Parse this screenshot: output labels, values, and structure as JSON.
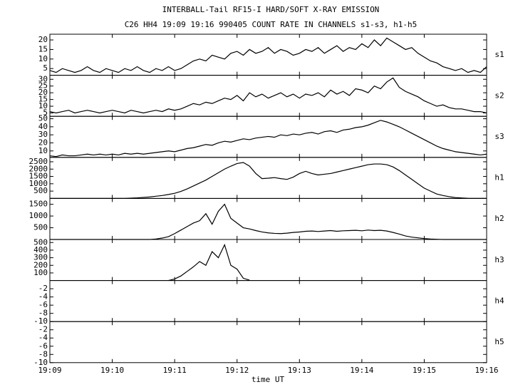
{
  "header": {
    "title": "INTERBALL-Tail RF15-I HARD/SOFT X-RAY EMISSION",
    "subtitle": "C26 HH4 19:09 19:16 990405  COUNT RATE IN CHANNELS s1-s3, h1-h5"
  },
  "xaxis": {
    "label": "time UT",
    "xlim": [
      1149,
      1156
    ],
    "xticks": [
      {
        "value": 1149,
        "label": "19:09"
      },
      {
        "value": 1150,
        "label": "19:10"
      },
      {
        "value": 1151,
        "label": "19:11"
      },
      {
        "value": 1152,
        "label": "19:12"
      },
      {
        "value": 1153,
        "label": "19:13"
      },
      {
        "value": 1154,
        "label": "19:14"
      },
      {
        "value": 1155,
        "label": "19:15"
      },
      {
        "value": 1156,
        "label": "19:16"
      }
    ]
  },
  "chart_data": [
    {
      "type": "line",
      "label": "s1",
      "color": "#000000",
      "ylim": [
        1.5,
        23
      ],
      "yticks": [
        5,
        10,
        15,
        20
      ],
      "x": [
        1149.0,
        1149.1,
        1149.2,
        1149.3,
        1149.4,
        1149.5,
        1149.6,
        1149.7,
        1149.8,
        1149.9,
        1150.0,
        1150.1,
        1150.2,
        1150.3,
        1150.4,
        1150.5,
        1150.6,
        1150.7,
        1150.8,
        1150.9,
        1151.0,
        1151.1,
        1151.2,
        1151.3,
        1151.4,
        1151.5,
        1151.6,
        1151.7,
        1151.8,
        1151.9,
        1152.0,
        1152.1,
        1152.2,
        1152.3,
        1152.4,
        1152.5,
        1152.6,
        1152.7,
        1152.8,
        1152.9,
        1153.0,
        1153.1,
        1153.2,
        1153.3,
        1153.4,
        1153.5,
        1153.6,
        1153.7,
        1153.8,
        1153.9,
        1154.0,
        1154.1,
        1154.2,
        1154.3,
        1154.4,
        1154.5,
        1154.6,
        1154.7,
        1154.8,
        1154.9,
        1155.0,
        1155.1,
        1155.2,
        1155.3,
        1155.4,
        1155.5,
        1155.6,
        1155.7,
        1155.8,
        1155.9,
        1156.0
      ],
      "values": [
        4,
        3,
        5,
        4,
        3,
        4,
        6,
        4,
        3,
        5,
        4,
        3,
        5,
        4,
        6,
        4,
        3,
        5,
        4,
        6,
        4,
        5,
        7,
        9,
        10,
        9,
        12,
        11,
        10,
        13,
        14,
        12,
        15,
        13,
        14,
        16,
        13,
        15,
        14,
        12,
        13,
        15,
        14,
        16,
        13,
        15,
        17,
        14,
        16,
        15,
        18,
        16,
        20,
        17,
        21,
        19,
        17,
        15,
        16,
        13,
        11,
        9,
        8,
        6,
        5,
        4,
        5,
        3,
        4,
        3,
        6
      ]
    },
    {
      "type": "line",
      "label": "s2",
      "color": "#000000",
      "ylim": [
        2.5,
        33
      ],
      "yticks": [
        5,
        10,
        15,
        20,
        25,
        30
      ],
      "x": [
        1149.0,
        1149.1,
        1149.2,
        1149.3,
        1149.4,
        1149.5,
        1149.6,
        1149.7,
        1149.8,
        1149.9,
        1150.0,
        1150.1,
        1150.2,
        1150.3,
        1150.4,
        1150.5,
        1150.6,
        1150.7,
        1150.8,
        1150.9,
        1151.0,
        1151.1,
        1151.2,
        1151.3,
        1151.4,
        1151.5,
        1151.6,
        1151.7,
        1151.8,
        1151.9,
        1152.0,
        1152.1,
        1152.2,
        1152.3,
        1152.4,
        1152.5,
        1152.6,
        1152.7,
        1152.8,
        1152.9,
        1153.0,
        1153.1,
        1153.2,
        1153.3,
        1153.4,
        1153.5,
        1153.6,
        1153.7,
        1153.8,
        1153.9,
        1154.0,
        1154.1,
        1154.2,
        1154.3,
        1154.4,
        1154.5,
        1154.6,
        1154.7,
        1154.8,
        1154.9,
        1155.0,
        1155.1,
        1155.2,
        1155.3,
        1155.4,
        1155.5,
        1155.6,
        1155.7,
        1155.8,
        1155.9,
        1156.0
      ],
      "values": [
        6,
        5,
        6,
        7,
        5,
        6,
        7,
        6,
        5,
        6,
        7,
        6,
        5,
        7,
        6,
        5,
        6,
        7,
        6,
        8,
        7,
        8,
        10,
        12,
        11,
        13,
        12,
        14,
        16,
        15,
        18,
        14,
        20,
        17,
        19,
        16,
        18,
        20,
        17,
        19,
        16,
        19,
        18,
        20,
        17,
        22,
        19,
        21,
        18,
        23,
        22,
        20,
        25,
        23,
        28,
        31,
        24,
        21,
        19,
        17,
        14,
        12,
        10,
        11,
        9,
        8,
        8,
        7,
        6,
        6,
        5
      ]
    },
    {
      "type": "line",
      "label": "s3",
      "color": "#000000",
      "ylim": [
        2,
        53
      ],
      "yticks": [
        10,
        20,
        30,
        40,
        50
      ],
      "x": [
        1149.0,
        1149.1,
        1149.2,
        1149.3,
        1149.4,
        1149.5,
        1149.6,
        1149.7,
        1149.8,
        1149.9,
        1150.0,
        1150.1,
        1150.2,
        1150.3,
        1150.4,
        1150.5,
        1150.6,
        1150.7,
        1150.8,
        1150.9,
        1151.0,
        1151.1,
        1151.2,
        1151.3,
        1151.4,
        1151.5,
        1151.6,
        1151.7,
        1151.8,
        1151.9,
        1152.0,
        1152.1,
        1152.2,
        1152.3,
        1152.4,
        1152.5,
        1152.6,
        1152.7,
        1152.8,
        1152.9,
        1153.0,
        1153.1,
        1153.2,
        1153.3,
        1153.4,
        1153.5,
        1153.6,
        1153.7,
        1153.8,
        1153.9,
        1154.0,
        1154.1,
        1154.2,
        1154.3,
        1154.4,
        1154.5,
        1154.6,
        1154.7,
        1154.8,
        1154.9,
        1155.0,
        1155.1,
        1155.2,
        1155.3,
        1155.4,
        1155.5,
        1155.6,
        1155.7,
        1155.8,
        1155.9,
        1156.0
      ],
      "values": [
        4,
        3,
        5,
        4,
        4,
        5,
        6,
        5,
        6,
        5,
        6,
        5,
        7,
        6,
        7,
        6,
        7,
        8,
        9,
        10,
        9,
        11,
        13,
        14,
        16,
        18,
        17,
        20,
        22,
        21,
        23,
        25,
        24,
        26,
        27,
        28,
        27,
        30,
        29,
        31,
        30,
        32,
        33,
        31,
        34,
        35,
        33,
        36,
        37,
        39,
        40,
        42,
        45,
        48,
        46,
        43,
        40,
        36,
        32,
        28,
        24,
        20,
        16,
        13,
        11,
        9,
        8,
        7,
        6,
        5,
        6
      ]
    },
    {
      "type": "line",
      "label": "h1",
      "color": "#000000",
      "ylim": [
        0,
        2800
      ],
      "yticks": [
        500,
        1000,
        1500,
        2000,
        2500
      ],
      "x": [
        1149.0,
        1149.1,
        1149.2,
        1149.3,
        1149.4,
        1149.5,
        1149.6,
        1149.7,
        1149.8,
        1149.9,
        1150.0,
        1150.1,
        1150.2,
        1150.3,
        1150.4,
        1150.5,
        1150.6,
        1150.7,
        1150.8,
        1150.9,
        1151.0,
        1151.1,
        1151.2,
        1151.3,
        1151.4,
        1151.5,
        1151.6,
        1151.7,
        1151.8,
        1151.9,
        1152.0,
        1152.1,
        1152.2,
        1152.3,
        1152.4,
        1152.5,
        1152.6,
        1152.7,
        1152.8,
        1152.9,
        1153.0,
        1153.1,
        1153.2,
        1153.3,
        1153.4,
        1153.5,
        1153.6,
        1153.7,
        1153.8,
        1153.9,
        1154.0,
        1154.1,
        1154.2,
        1154.3,
        1154.4,
        1154.5,
        1154.6,
        1154.7,
        1154.8,
        1154.9,
        1155.0,
        1155.1,
        1155.2,
        1155.3,
        1155.4,
        1155.5,
        1155.6,
        1155.7,
        1155.8,
        1155.9,
        1156.0
      ],
      "values": [
        0,
        0,
        0,
        0,
        0,
        0,
        0,
        0,
        0,
        0,
        0,
        0,
        0,
        20,
        40,
        70,
        100,
        150,
        200,
        270,
        350,
        480,
        650,
        850,
        1050,
        1250,
        1500,
        1750,
        2000,
        2200,
        2380,
        2450,
        2200,
        1700,
        1350,
        1380,
        1420,
        1350,
        1300,
        1450,
        1700,
        1850,
        1700,
        1600,
        1650,
        1700,
        1800,
        1900,
        2000,
        2100,
        2200,
        2300,
        2350,
        2350,
        2300,
        2150,
        1900,
        1600,
        1300,
        1000,
        700,
        500,
        300,
        200,
        120,
        60,
        30,
        10,
        0,
        0,
        0
      ]
    },
    {
      "type": "line",
      "label": "h2",
      "color": "#000000",
      "ylim": [
        0,
        1750
      ],
      "yticks": [
        500,
        1000,
        1500
      ],
      "x": [
        1149.0,
        1149.1,
        1149.2,
        1149.3,
        1149.4,
        1149.5,
        1149.6,
        1149.7,
        1149.8,
        1149.9,
        1150.0,
        1150.1,
        1150.2,
        1150.3,
        1150.4,
        1150.5,
        1150.6,
        1150.7,
        1150.8,
        1150.9,
        1151.0,
        1151.1,
        1151.2,
        1151.3,
        1151.4,
        1151.5,
        1151.6,
        1151.7,
        1151.8,
        1151.9,
        1152.0,
        1152.1,
        1152.2,
        1152.3,
        1152.4,
        1152.5,
        1152.6,
        1152.7,
        1152.8,
        1152.9,
        1153.0,
        1153.1,
        1153.2,
        1153.3,
        1153.4,
        1153.5,
        1153.6,
        1153.7,
        1153.8,
        1153.9,
        1154.0,
        1154.1,
        1154.2,
        1154.3,
        1154.4,
        1154.5,
        1154.6,
        1154.7,
        1154.8,
        1154.9,
        1155.0,
        1155.1,
        1155.2,
        1155.3,
        1155.4,
        1155.5,
        1155.6,
        1155.7,
        1155.8,
        1155.9,
        1156.0
      ],
      "values": [
        0,
        0,
        0,
        0,
        0,
        0,
        0,
        0,
        0,
        0,
        0,
        0,
        0,
        0,
        0,
        0,
        0,
        20,
        60,
        120,
        250,
        400,
        550,
        700,
        800,
        1100,
        650,
        1200,
        1500,
        900,
        700,
        500,
        450,
        380,
        320,
        280,
        260,
        250,
        270,
        300,
        320,
        350,
        360,
        340,
        360,
        380,
        350,
        370,
        380,
        390,
        370,
        400,
        380,
        390,
        360,
        300,
        230,
        150,
        100,
        70,
        40,
        20,
        10,
        0,
        0,
        0,
        0,
        0,
        0,
        0,
        0
      ]
    },
    {
      "type": "line",
      "label": "h3",
      "color": "#000000",
      "ylim": [
        0,
        540
      ],
      "yticks": [
        100,
        200,
        300,
        400,
        500
      ],
      "x": [
        1149.0,
        1149.1,
        1149.2,
        1149.3,
        1149.4,
        1149.5,
        1149.6,
        1149.7,
        1149.8,
        1149.9,
        1150.0,
        1150.1,
        1150.2,
        1150.3,
        1150.4,
        1150.5,
        1150.6,
        1150.7,
        1150.8,
        1150.9,
        1151.0,
        1151.1,
        1151.2,
        1151.3,
        1151.4,
        1151.5,
        1151.6,
        1151.7,
        1151.8,
        1151.9,
        1152.0,
        1152.1,
        1152.2,
        1152.3,
        1152.4,
        1152.5,
        1152.6,
        1152.7,
        1152.8,
        1152.9,
        1153.0,
        1153.1,
        1153.2,
        1153.3,
        1153.4,
        1153.5,
        1153.6,
        1153.7,
        1153.8,
        1153.9,
        1154.0,
        1154.1,
        1154.2,
        1154.3,
        1154.4,
        1154.5,
        1154.6,
        1154.7,
        1154.8,
        1154.9,
        1155.0,
        1155.1,
        1155.2,
        1155.3,
        1155.4,
        1155.5,
        1155.6,
        1155.7,
        1155.8,
        1155.9,
        1156.0
      ],
      "values": [
        null,
        null,
        null,
        null,
        null,
        null,
        null,
        null,
        null,
        null,
        null,
        null,
        null,
        null,
        null,
        null,
        null,
        null,
        null,
        0,
        20,
        60,
        120,
        180,
        250,
        200,
        380,
        300,
        470,
        200,
        150,
        30,
        5,
        null,
        null,
        null,
        null,
        null,
        null,
        null,
        null,
        null,
        null,
        null,
        null,
        null,
        null,
        null,
        null,
        null,
        null,
        null,
        null,
        null,
        null,
        null,
        null,
        null,
        null,
        null,
        null,
        null,
        null,
        null,
        null,
        null,
        null,
        null,
        null,
        null,
        null
      ]
    },
    {
      "type": "line",
      "label": "h4",
      "color": "#000000",
      "ylim": [
        -10,
        0
      ],
      "yticks": [
        -10,
        -8,
        -6,
        -4,
        -2
      ]
    },
    {
      "type": "line",
      "label": "h5",
      "color": "#000000",
      "ylim": [
        -10,
        0
      ],
      "yticks": [
        -10,
        -8,
        -6,
        -4,
        -2
      ]
    }
  ]
}
